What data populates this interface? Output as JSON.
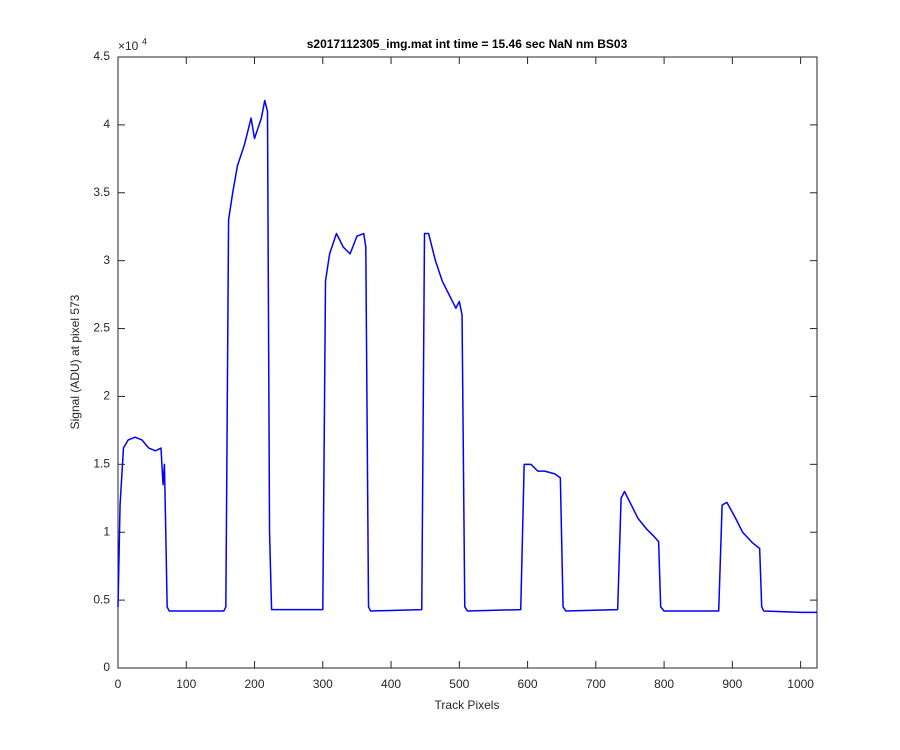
{
  "chart_data": {
    "type": "line",
    "title": "s2017112305_img.mat int time = 15.46 sec  NaN nm BS03",
    "x_label": "Track Pixels",
    "y_label": "Signal (ADU) at pixel 573",
    "y_scale_base": "×10",
    "y_scale_exponent": "4",
    "xlim": [
      0,
      1024
    ],
    "ylim": [
      0,
      4.5
    ],
    "xticks": [
      0,
      100,
      200,
      300,
      400,
      500,
      600,
      700,
      800,
      900,
      1000
    ],
    "yticks": [
      0,
      0.5,
      1,
      1.5,
      2,
      2.5,
      3,
      3.5,
      4,
      4.5
    ],
    "grid": false,
    "series": [
      {
        "color": "#0000ff",
        "x": [
          0,
          3,
          8,
          15,
          25,
          35,
          45,
          55,
          63,
          66,
          68,
          70,
          72,
          75,
          155,
          158,
          162,
          168,
          175,
          185,
          195,
          200,
          210,
          215,
          219,
          222,
          225,
          300,
          304,
          310,
          320,
          330,
          340,
          350,
          360,
          363,
          367,
          370,
          445,
          449,
          455,
          465,
          475,
          485,
          495,
          500,
          504,
          508,
          512,
          590,
          595,
          605,
          615,
          625,
          640,
          648,
          652,
          656,
          732,
          737,
          742,
          752,
          762,
          775,
          785,
          792,
          795,
          800,
          880,
          885,
          892,
          905,
          915,
          930,
          940,
          943,
          946,
          1000,
          1024
        ],
        "values": [
          0.45,
          1.2,
          1.62,
          1.68,
          1.7,
          1.68,
          1.62,
          1.6,
          1.62,
          1.35,
          1.5,
          1.0,
          0.45,
          0.42,
          0.42,
          0.45,
          3.3,
          3.5,
          3.7,
          3.85,
          4.05,
          3.9,
          4.05,
          4.18,
          4.1,
          1.0,
          0.43,
          0.43,
          2.85,
          3.05,
          3.2,
          3.1,
          3.05,
          3.18,
          3.2,
          3.1,
          0.45,
          0.42,
          0.43,
          3.2,
          3.2,
          3.0,
          2.85,
          2.75,
          2.65,
          2.7,
          2.6,
          0.45,
          0.42,
          0.43,
          1.5,
          1.5,
          1.45,
          1.45,
          1.43,
          1.4,
          0.45,
          0.42,
          0.43,
          1.25,
          1.3,
          1.2,
          1.1,
          1.02,
          0.97,
          0.93,
          0.45,
          0.42,
          0.42,
          1.2,
          1.22,
          1.1,
          1.0,
          0.92,
          0.88,
          0.45,
          0.42,
          0.41,
          0.41
        ]
      }
    ]
  }
}
